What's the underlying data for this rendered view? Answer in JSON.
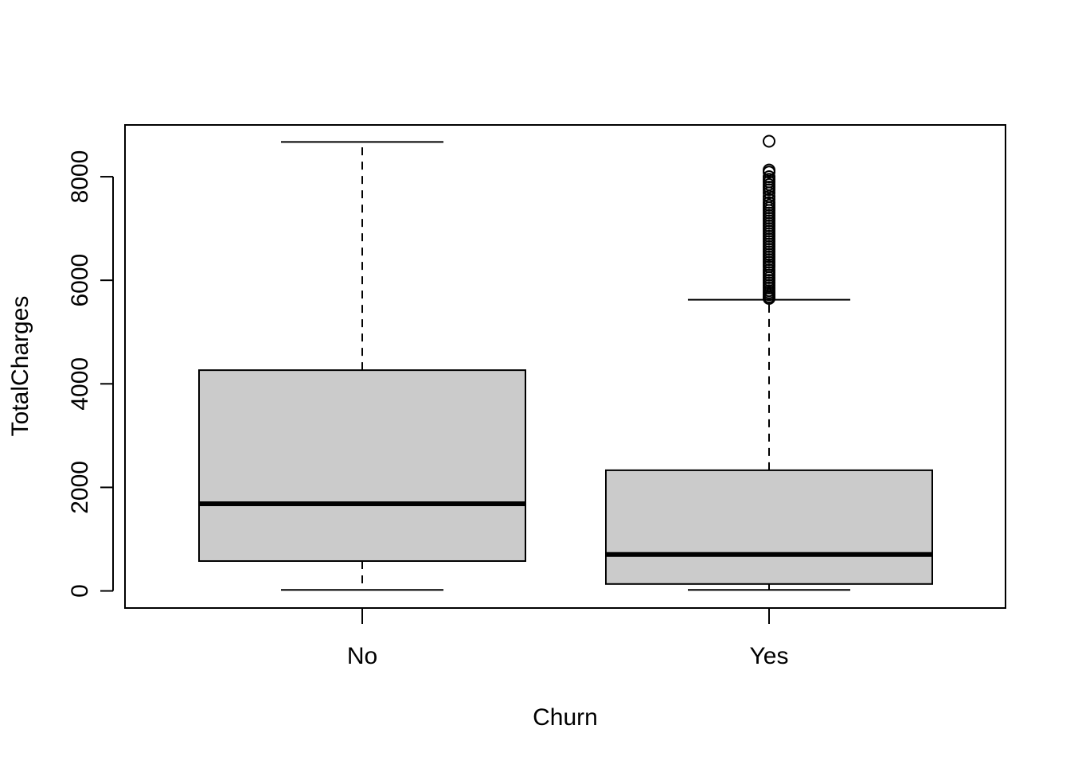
{
  "chart_data": {
    "type": "boxplot",
    "title": "",
    "xlabel": "Churn",
    "ylabel": "TotalCharges",
    "ylim": [
      -330,
      9000
    ],
    "yticks": [
      0,
      2000,
      4000,
      6000,
      8000
    ],
    "ytick_labels": [
      "0",
      "2000",
      "4000",
      "6000",
      "8000"
    ],
    "categories": [
      "No",
      "Yes"
    ],
    "grid": false,
    "legend": "none",
    "colors": {
      "box_fill": "#cbcbcb",
      "stroke": "#000000",
      "background": "#ffffff"
    },
    "boxes": [
      {
        "category": "No",
        "whisker_low": 19,
        "q1": 577,
        "median": 1684,
        "q3": 4264,
        "whisker_high": 8672,
        "outliers": []
      },
      {
        "category": "Yes",
        "whisker_low": 19,
        "q1": 134,
        "median": 704,
        "q3": 2331,
        "whisker_high": 5625,
        "outliers": [
          5650,
          5680,
          5720,
          5760,
          5800,
          5850,
          5900,
          5950,
          6000,
          6050,
          6100,
          6150,
          6200,
          6260,
          6300,
          6350,
          6400,
          6450,
          6500,
          6550,
          6600,
          6650,
          6700,
          6750,
          6800,
          6850,
          6900,
          6950,
          7000,
          7050,
          7100,
          7150,
          7200,
          7250,
          7300,
          7350,
          7400,
          7450,
          7500,
          7560,
          7620,
          7690,
          7750,
          7800,
          7850,
          7900,
          7950,
          8000,
          8090,
          8130,
          8685
        ]
      }
    ]
  }
}
